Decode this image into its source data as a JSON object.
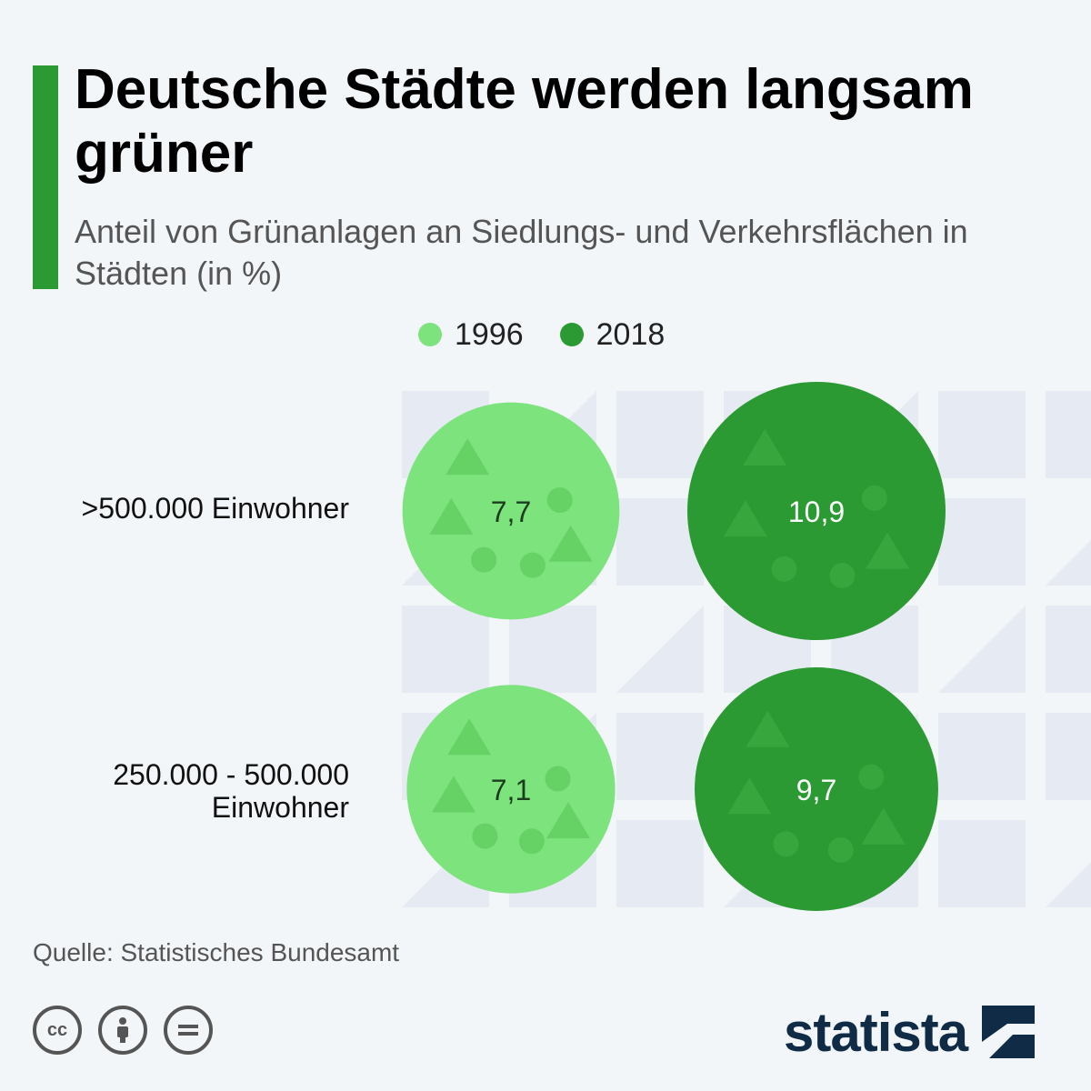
{
  "header": {
    "title": "Deutsche Städte werden langsam grüner",
    "subtitle": "Anteil von Grünanlagen an Siedlungs- und Verkehrsflächen in Städten (in %)"
  },
  "legend": [
    {
      "label": "1996",
      "color": "#7de37d"
    },
    {
      "label": "2018",
      "color": "#2b9a32"
    }
  ],
  "chart_data": {
    "type": "bubble",
    "title": "Deutsche Städte werden langsam grüner",
    "subtitle": "Anteil von Grünanlagen an Siedlungs- und Verkehrsflächen in Städten (in %)",
    "categories": [
      ">500.000 Einwohner",
      "250.000 - 500.000 Einwohner"
    ],
    "series": [
      {
        "name": "1996",
        "color": "#7de37d",
        "values": [
          7.7,
          7.1
        ],
        "labels": [
          "7,7",
          "7,1"
        ]
      },
      {
        "name": "2018",
        "color": "#2b9a32",
        "values": [
          10.9,
          9.7
        ],
        "labels": [
          "10,9",
          "9,7"
        ]
      }
    ],
    "legend_position": "top"
  },
  "rows": [
    {
      "label_line1": ">500.000 Einwohner",
      "label_line2": ""
    },
    {
      "label_line1": "250.000 - 500.000",
      "label_line2": "Einwohner"
    }
  ],
  "footer": {
    "source": "Quelle: Statistisches Bundesamt",
    "cc_icons": [
      "cc-icon",
      "attribution-icon",
      "no-derivatives-icon"
    ],
    "logo": "statista"
  }
}
